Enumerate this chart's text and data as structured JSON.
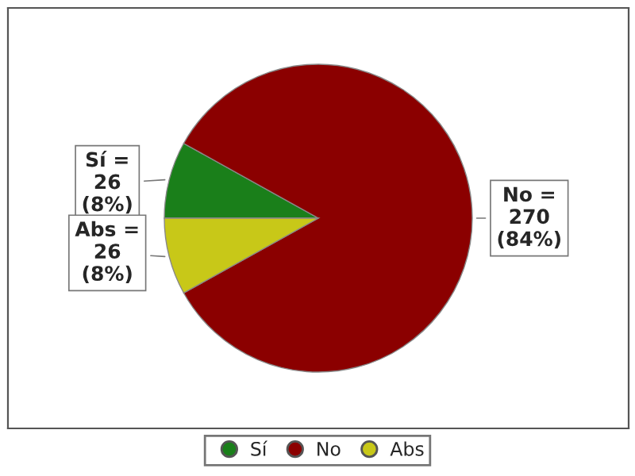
{
  "chart_data": {
    "type": "pie",
    "categories": [
      "Sí",
      "No",
      "Abs"
    ],
    "values": [
      26,
      270,
      26
    ],
    "colors": [
      "#1a7f1a",
      "#8b0000",
      "#c8c818"
    ],
    "value_labels": [
      "Sí =\n26\n(8%)",
      "No =\n270\n(84%)",
      "Abs =\n26\n(8%)"
    ],
    "legend": "bottom"
  }
}
